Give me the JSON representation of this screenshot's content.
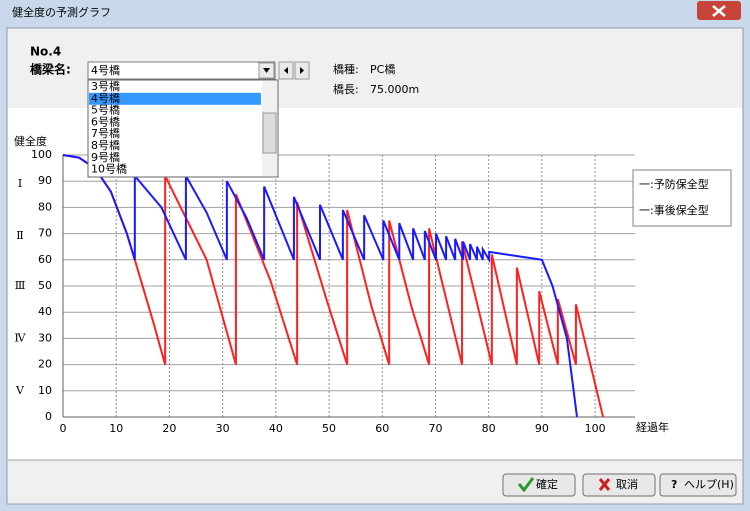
{
  "window": {
    "title": "健全度の予測グラフ"
  },
  "header": {
    "number": "No.4",
    "bridge_label": "橋梁名:",
    "bridge_type_label": "橋種:",
    "bridge_type": "PC橋",
    "bridge_length_label": "橋長:",
    "bridge_length": "75.000m"
  },
  "dropdown": {
    "selected": "4号橋",
    "items": [
      "3号橋",
      "4号橋",
      "5号橋",
      "6号橋",
      "7号橋",
      "8号橋",
      "9号橋",
      "10号橋"
    ],
    "highlighted": 1
  },
  "chart_data": {
    "type": "line",
    "ylabel": "健全度",
    "xlabel": "経過年",
    "xlim": [
      0,
      107.5
    ],
    "ylim": [
      0,
      100
    ],
    "xticks": [
      0,
      10,
      20,
      30,
      40,
      50,
      60,
      70,
      80,
      90,
      100
    ],
    "yticks": [
      0,
      10,
      20,
      30,
      40,
      50,
      60,
      70,
      80,
      90,
      100
    ],
    "grade_ticks": [
      {
        "value": 89,
        "label": "Ⅰ"
      },
      {
        "value": 69,
        "label": "Ⅱ"
      },
      {
        "value": 50,
        "label": "Ⅲ"
      },
      {
        "value": 30,
        "label": "Ⅳ"
      },
      {
        "value": 10,
        "label": "Ⅴ"
      }
    ],
    "grid": true,
    "legend": "right",
    "series": [
      {
        "name": "一:事後保全型",
        "color": "#ff2020",
        "x": [
          0,
          3,
          6,
          9,
          12,
          13.5,
          17,
          19.2,
          19.2,
          27,
          32.5,
          32.5,
          39,
          44,
          44,
          49.5,
          53.4,
          53.4,
          58,
          61.3,
          61.3,
          65.5,
          68.8,
          68.8,
          75,
          75,
          80.6,
          80.6,
          85.3,
          85.3,
          89.5,
          89.5,
          93,
          93,
          96.4,
          96.4,
          101.5
        ],
        "values": [
          100,
          99,
          95,
          86,
          70,
          60,
          36,
          20,
          92,
          60,
          20,
          85,
          52,
          20,
          82,
          45,
          20,
          79,
          42,
          20,
          75,
          42,
          20,
          72,
          20,
          67,
          20,
          62,
          20,
          57,
          20,
          48,
          20,
          45,
          20,
          43,
          0
        ]
      },
      {
        "name": "一:予防保全型",
        "color": "#1a1aff",
        "x": [
          0,
          3,
          6,
          9,
          12,
          13.5,
          13.5,
          18.5,
          23.1,
          23.1,
          27,
          30.8,
          30.8,
          34.5,
          37.8,
          37.8,
          43.4,
          43.4,
          48.3,
          48.3,
          52.6,
          52.6,
          56.6,
          56.6,
          60.2,
          60.2,
          63.2,
          63.2,
          65.8,
          65.8,
          68,
          68,
          70.1,
          70.1,
          72,
          72,
          73.7,
          73.7,
          75.2,
          75.2,
          76.5,
          76.5,
          77.8,
          77.8,
          78.9,
          78.9,
          80.1,
          80.1,
          90,
          92,
          94.7,
          96.6
        ],
        "values": [
          100,
          99,
          95,
          86,
          70,
          60,
          92,
          80,
          60,
          92,
          78,
          60,
          90,
          76,
          60,
          88,
          60,
          84,
          60,
          81,
          60,
          79,
          60,
          77,
          60,
          75,
          60,
          74,
          60,
          72,
          60,
          71,
          60,
          70,
          60,
          69,
          60,
          68,
          60,
          67,
          60,
          66,
          60,
          65,
          60,
          64,
          60,
          63,
          60,
          50,
          30,
          0
        ]
      }
    ]
  },
  "buttons": [
    "確定",
    "取消",
    "ヘルプ(H)"
  ]
}
